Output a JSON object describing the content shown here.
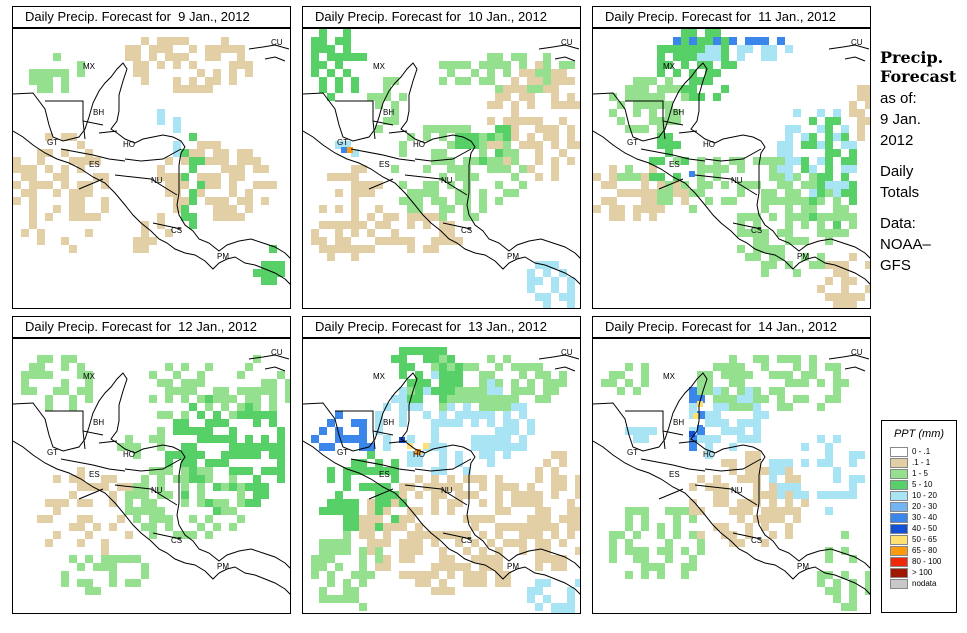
{
  "panels": [
    {
      "title": "Daily Precip. Forecast for  9 Jan., 2012"
    },
    {
      "title": "Daily Precip. Forecast for  10 Jan., 2012"
    },
    {
      "title": "Daily Precip. Forecast for  11 Jan., 2012"
    },
    {
      "title": "Daily Precip. Forecast for  12 Jan., 2012"
    },
    {
      "title": "Daily Precip. Forecast for  13 Jan., 2012"
    },
    {
      "title": "Daily Precip. Forecast for  14 Jan., 2012"
    }
  ],
  "country_labels": [
    "MX",
    "BH",
    "GT",
    "HO",
    "ES",
    "NU",
    "CS",
    "PM",
    "CU"
  ],
  "sidebar": {
    "heading_1": "Precip.",
    "heading_2": "Forecast",
    "asof_label": "as of:",
    "asof_date_1": "9 Jan.",
    "asof_date_2": "2012",
    "totals_1": "Daily",
    "totals_2": "Totals",
    "data_1": "Data:",
    "data_2": "NOAA–",
    "data_3": "GFS"
  },
  "legend": {
    "title": "PPT (mm)",
    "items": [
      {
        "label": "0 - .1",
        "color": "#ffffff"
      },
      {
        "label": ".1 - 1",
        "color": "#e3cfa6"
      },
      {
        "label": "1 - 5",
        "color": "#94e08e"
      },
      {
        "label": "5 - 10",
        "color": "#58d068"
      },
      {
        "label": "10 - 20",
        "color": "#a8e4f4"
      },
      {
        "label": "20 - 30",
        "color": "#74b4f2"
      },
      {
        "label": "30 - 40",
        "color": "#3a86ea"
      },
      {
        "label": "40 - 50",
        "color": "#1250d8"
      },
      {
        "label": "50 - 65",
        "color": "#ffe070"
      },
      {
        "label": "65 - 80",
        "color": "#ff9a10"
      },
      {
        "label": "80 - 100",
        "color": "#ee2a0a"
      },
      {
        "label": "> 100",
        "color": "#a01800"
      },
      {
        "label": "nodata",
        "color": "#c8c8c8"
      }
    ]
  },
  "colors": {
    "tan": "#e3cfa6",
    "light_green": "#94e08e",
    "green": "#58d068",
    "light_blue": "#a8e4f4",
    "blue": "#74b4f2",
    "dark_blue": "#3a86ea",
    "deep_blue": "#1250d8",
    "yellow": "#ffe070",
    "orange": "#ff9a10"
  }
}
